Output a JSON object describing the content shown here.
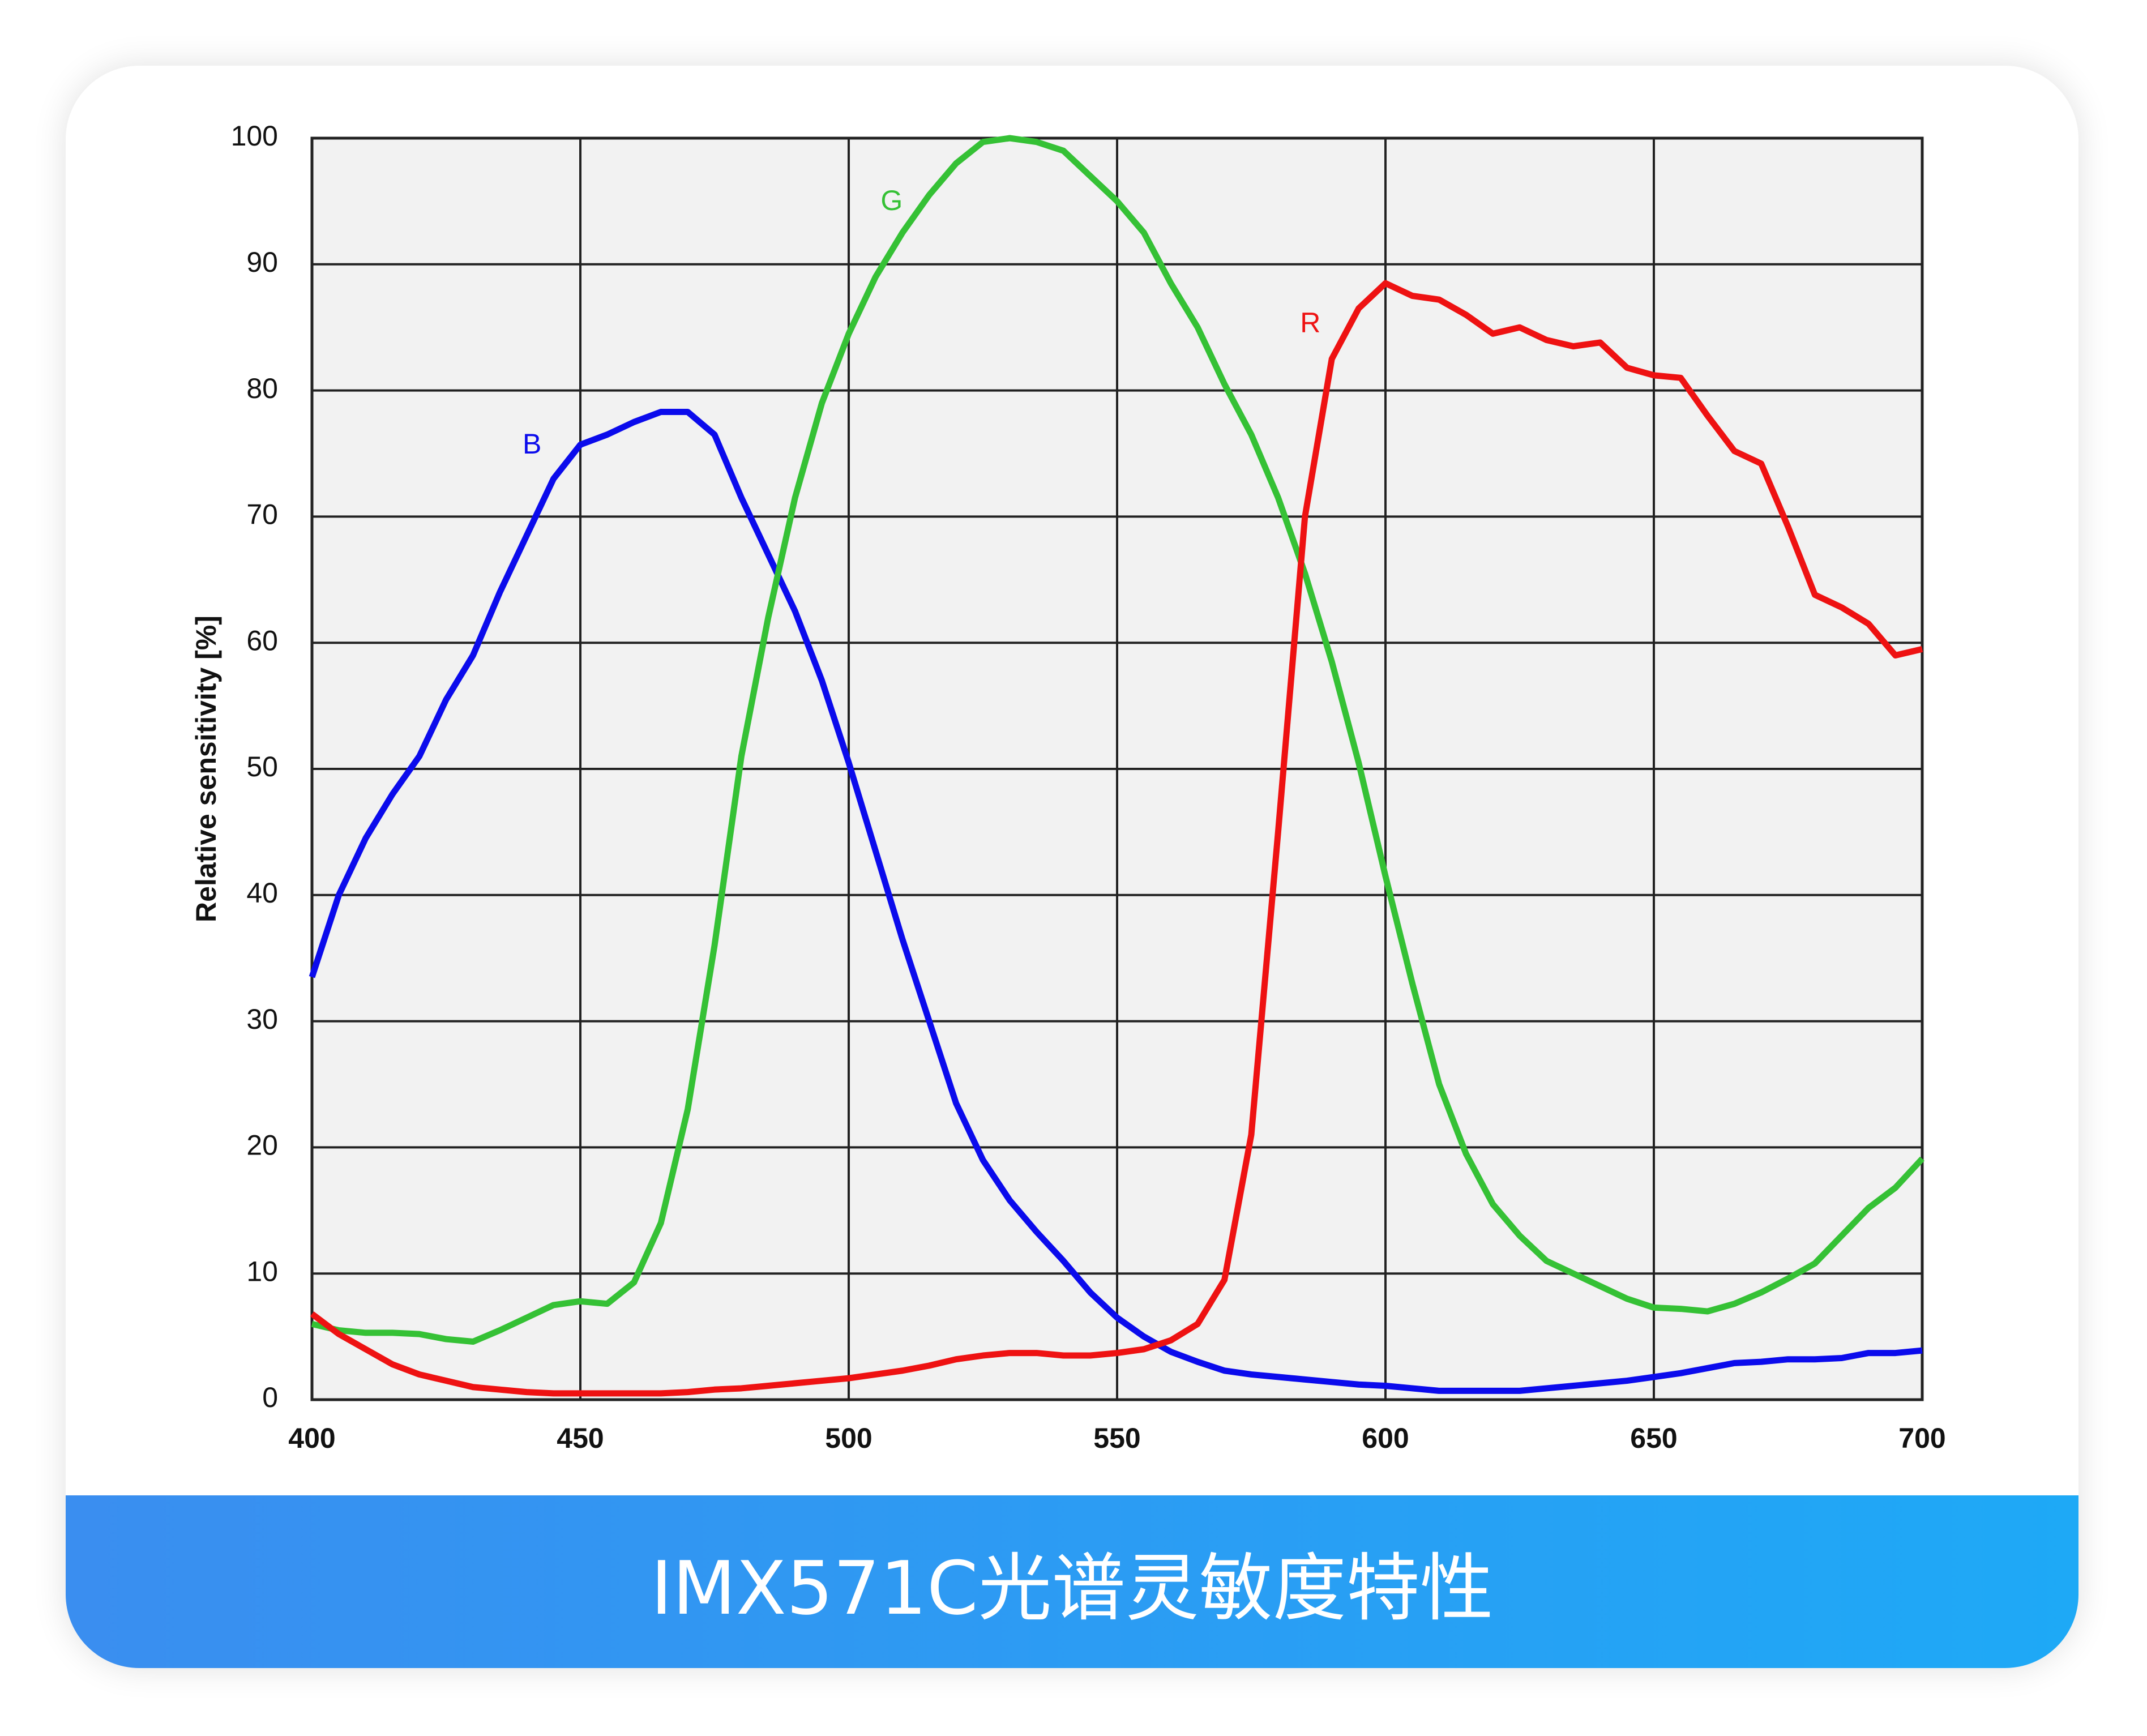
{
  "chart_data": {
    "type": "line",
    "title": "IMX571C光谱灵敏度特性",
    "y_label": "Relative sensitivity [%]",
    "x": [
      400,
      405,
      410,
      415,
      420,
      425,
      430,
      435,
      440,
      445,
      450,
      455,
      460,
      465,
      470,
      475,
      480,
      485,
      490,
      495,
      500,
      505,
      510,
      515,
      520,
      525,
      530,
      535,
      540,
      545,
      550,
      555,
      560,
      565,
      570,
      575,
      580,
      585,
      590,
      595,
      600,
      605,
      610,
      615,
      620,
      625,
      630,
      635,
      640,
      645,
      650,
      655,
      660,
      665,
      670,
      675,
      680,
      685,
      690,
      695,
      700
    ],
    "series": [
      {
        "name": "B",
        "color": "#0b0bec",
        "values": [
          33.5,
          40,
          44.5,
          48,
          51,
          55.5,
          59,
          64,
          68.5,
          73,
          75.7,
          76.5,
          77.5,
          78.3,
          78.3,
          76.5,
          71.5,
          67,
          62.5,
          57,
          50.5,
          43.5,
          36.5,
          30,
          23.5,
          19,
          15.8,
          13.3,
          11,
          8.5,
          6.5,
          5,
          3.8,
          3,
          2.3,
          2,
          1.8,
          1.6,
          1.4,
          1.2,
          1.1,
          0.9,
          0.7,
          0.7,
          0.7,
          0.7,
          0.9,
          1.1,
          1.3,
          1.5,
          1.8,
          2.1,
          2.5,
          2.9,
          3,
          3.2,
          3.2,
          3.3,
          3.7,
          3.7,
          3.9
        ]
      },
      {
        "name": "G",
        "color": "#35c135",
        "values": [
          6,
          5.5,
          5.3,
          5.3,
          5.2,
          4.8,
          4.6,
          5.5,
          6.5,
          7.5,
          7.8,
          7.6,
          9.3,
          14,
          23,
          36,
          51,
          62,
          71.5,
          79,
          84.5,
          89,
          92.5,
          95.5,
          98,
          99.7,
          100,
          99.7,
          99,
          97,
          95,
          92.5,
          88.5,
          85,
          80.5,
          76.5,
          71.5,
          65.5,
          58.5,
          50.5,
          41.5,
          33,
          25,
          19.5,
          15.5,
          13,
          11,
          10,
          9,
          8,
          7.3,
          7.2,
          7,
          7.6,
          8.5,
          9.6,
          10.8,
          13,
          15.2,
          16.8,
          19.1
        ]
      },
      {
        "name": "R",
        "color": "#ee1212",
        "values": [
          6.8,
          5.2,
          4,
          2.8,
          2,
          1.5,
          1,
          0.8,
          0.6,
          0.5,
          0.5,
          0.5,
          0.5,
          0.5,
          0.6,
          0.8,
          0.9,
          1.1,
          1.3,
          1.5,
          1.7,
          2,
          2.3,
          2.7,
          3.2,
          3.5,
          3.7,
          3.7,
          3.5,
          3.5,
          3.7,
          4,
          4.7,
          6,
          9.5,
          21,
          45,
          70,
          82.5,
          86.5,
          88.5,
          87.5,
          87.2,
          86,
          84.5,
          85,
          84,
          83.5,
          83.8,
          81.8,
          81.2,
          81,
          78,
          75.2,
          74.2,
          69.2,
          63.8,
          62.8,
          61.5,
          59,
          59.5
        ]
      }
    ],
    "label_positions": [
      {
        "x": 441,
        "y": 75.6
      },
      {
        "x": 508,
        "y": 94.9
      },
      {
        "x": 586,
        "y": 85.2
      }
    ],
    "xlim": [
      400,
      700
    ],
    "ylim": [
      0,
      100
    ],
    "xticks": [
      400,
      450,
      500,
      550,
      600,
      650,
      700
    ],
    "yticks": [
      0,
      10,
      20,
      30,
      40,
      50,
      60,
      70,
      80,
      90,
      100
    ],
    "grid": true
  }
}
